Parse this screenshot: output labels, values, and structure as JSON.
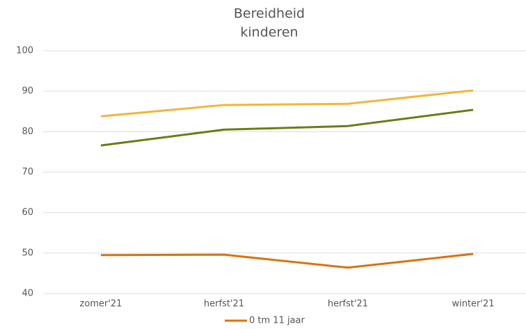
{
  "chart_data": {
    "type": "line",
    "title": [
      "Bereidheid",
      "kinderen"
    ],
    "categories": [
      "zomer'21",
      "herfst'21",
      "herfst'21",
      "winter'21"
    ],
    "series": [
      {
        "color": "#f2b53a",
        "values": [
          83.8,
          86.6,
          86.9,
          90.2
        ]
      },
      {
        "color": "#6f7a14",
        "values": [
          76.6,
          80.5,
          81.4,
          85.4
        ]
      },
      {
        "name": "0 tm 11 jaar",
        "color": "#d8730f",
        "values": [
          49.5,
          49.6,
          46.4,
          49.8
        ]
      }
    ],
    "ylim": [
      40,
      100
    ],
    "yticks": [
      40,
      50,
      60,
      70,
      80,
      90,
      100
    ],
    "grid": true,
    "legend": "bottom"
  }
}
